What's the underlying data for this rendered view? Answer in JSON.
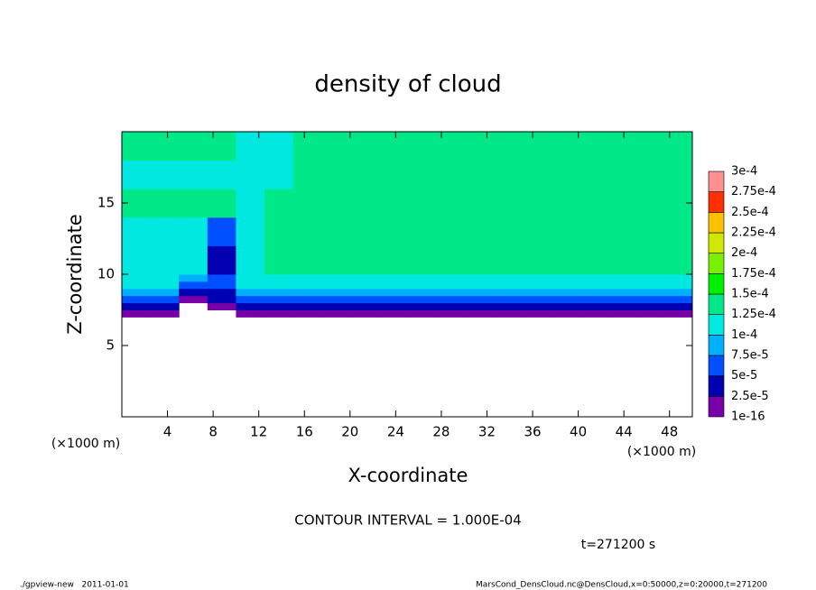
{
  "chart_data": {
    "type": "heatmap",
    "title": "density of cloud",
    "xlabel": "X-coordinate",
    "ylabel": "Z-coordinate",
    "xunit": "(×1000 m)",
    "yunit": "(×1000 m)",
    "xlim": [
      0,
      50
    ],
    "ylim": [
      0,
      20
    ],
    "xticks": [
      4,
      8,
      12,
      16,
      20,
      24,
      28,
      32,
      36,
      40,
      44,
      48
    ],
    "yticks": [
      5,
      10,
      15
    ],
    "x_edges": [
      0,
      2.5,
      5,
      7.5,
      10,
      12.5,
      15,
      17.5,
      20,
      22.5,
      25,
      27.5,
      30,
      32.5,
      35,
      37.5,
      40,
      42.5,
      45,
      47.5,
      50
    ],
    "z_edges": [
      7,
      7.5,
      8,
      8.5,
      9,
      9.5,
      10,
      12,
      14,
      16,
      18,
      20
    ],
    "values": [
      [
        1.5e-05,
        1.5e-05,
        null,
        null,
        1.5e-05,
        1.5e-05,
        1.5e-05,
        1.5e-05,
        1.5e-05,
        1.5e-05,
        1.5e-05,
        1.5e-05,
        1.5e-05,
        1.5e-05,
        1.5e-05,
        1.5e-05,
        1.5e-05,
        1.5e-05,
        1.5e-05,
        1.5e-05
      ],
      [
        3.5e-05,
        3.5e-05,
        null,
        1.5e-05,
        3.5e-05,
        3.5e-05,
        3.5e-05,
        3.5e-05,
        3.5e-05,
        3.5e-05,
        3.5e-05,
        3.5e-05,
        3.5e-05,
        3.5e-05,
        3.5e-05,
        3.5e-05,
        3.5e-05,
        3.5e-05,
        3.5e-05,
        3.5e-05
      ],
      [
        6e-05,
        6e-05,
        1.5e-05,
        3.5e-05,
        6e-05,
        6e-05,
        6e-05,
        6e-05,
        6e-05,
        6e-05,
        6e-05,
        6e-05,
        6e-05,
        6e-05,
        6e-05,
        6e-05,
        6e-05,
        6e-05,
        6e-05,
        6e-05
      ],
      [
        8.5e-05,
        8.5e-05,
        3.5e-05,
        3.5e-05,
        8.5e-05,
        8.5e-05,
        8.5e-05,
        8.5e-05,
        8.5e-05,
        8.5e-05,
        8.5e-05,
        8.5e-05,
        8.5e-05,
        8.5e-05,
        8.5e-05,
        8.5e-05,
        8.5e-05,
        8.5e-05,
        8.5e-05,
        8.5e-05
      ],
      [
        0.000105,
        0.000105,
        6e-05,
        6e-05,
        0.000105,
        0.000105,
        0.000105,
        0.000105,
        0.000105,
        0.000105,
        0.000105,
        0.000105,
        0.000105,
        0.000105,
        0.000105,
        0.000105,
        0.000105,
        0.000105,
        0.000105,
        0.000105
      ],
      [
        0.00012,
        0.00012,
        9e-05,
        6e-05,
        0.00012,
        0.00012,
        0.00012,
        0.00012,
        0.00012,
        0.00012,
        0.00012,
        0.00012,
        0.00012,
        0.00012,
        0.00012,
        0.00012,
        0.00012,
        0.00012,
        0.00012,
        0.00012
      ],
      [
        0.00012,
        0.00012,
        0.00012,
        3.5e-05,
        0.00012,
        0.000135,
        0.000135,
        0.000135,
        0.000135,
        0.000135,
        0.000135,
        0.000135,
        0.000135,
        0.000135,
        0.000135,
        0.000135,
        0.000135,
        0.000135,
        0.000135,
        0.000135
      ],
      [
        0.00012,
        0.00012,
        0.00012,
        6e-05,
        0.000115,
        0.000135,
        0.000135,
        0.000135,
        0.000135,
        0.000135,
        0.000135,
        0.000135,
        0.000135,
        0.000135,
        0.000135,
        0.000135,
        0.000135,
        0.000135,
        0.000135,
        0.000135
      ],
      [
        0.000125,
        0.000125,
        0.000125,
        0.000125,
        0.00012,
        0.00013,
        0.000138,
        0.000138,
        0.000138,
        0.000138,
        0.000138,
        0.000138,
        0.000138,
        0.000138,
        0.000138,
        0.000138,
        0.000138,
        0.000138,
        0.000138,
        0.000138
      ],
      [
        0.00012,
        0.00012,
        0.00012,
        0.00012,
        0.00011,
        0.00011,
        0.000138,
        0.000138,
        0.000138,
        0.000138,
        0.000138,
        0.000138,
        0.000138,
        0.000138,
        0.000138,
        0.000138,
        0.000138,
        0.000138,
        0.000138,
        0.000138
      ],
      [
        0.00013,
        0.00013,
        0.00013,
        0.000125,
        0.00011,
        0.0001,
        0.000138,
        0.000138,
        0.000138,
        0.000138,
        0.000138,
        0.000138,
        0.000138,
        0.000138,
        0.000138,
        0.000138,
        0.000138,
        0.000138,
        0.000138,
        0.000138
      ]
    ],
    "colorbar": {
      "levels": [
        {
          "value": 1e-16,
          "label": "1e-16"
        },
        {
          "value": 2.5e-05,
          "label": "2.5e-5"
        },
        {
          "value": 5e-05,
          "label": "5e-5"
        },
        {
          "value": 7.5e-05,
          "label": "7.5e-5"
        },
        {
          "value": 0.0001,
          "label": "1e-4"
        },
        {
          "value": 0.000125,
          "label": "1.25e-4"
        },
        {
          "value": 0.00015,
          "label": "1.5e-4"
        },
        {
          "value": 0.000175,
          "label": "1.75e-4"
        },
        {
          "value": 0.0002,
          "label": "2e-4"
        },
        {
          "value": 0.000225,
          "label": "2.25e-4"
        },
        {
          "value": 0.00025,
          "label": "2.5e-4"
        },
        {
          "value": 0.000275,
          "label": "2.75e-4"
        },
        {
          "value": 0.0003,
          "label": "3e-4"
        }
      ],
      "colors": [
        "#7800a8",
        "#0000b0",
        "#0050ff",
        "#00b0ff",
        "#00e8e0",
        "#00e888",
        "#00f000",
        "#78f000",
        "#d0e800",
        "#ffc000",
        "#ff3000",
        "#ff9090"
      ]
    },
    "contour_note": "CONTOUR INTERVAL = 1.000E-04",
    "time_label": "t=271200 s",
    "footer_left": "./gpview-new   2011-01-01",
    "footer_right": "MarsCond_DensCloud.nc@DensCloud,x=0:50000,z=0:20000,t=271200"
  }
}
